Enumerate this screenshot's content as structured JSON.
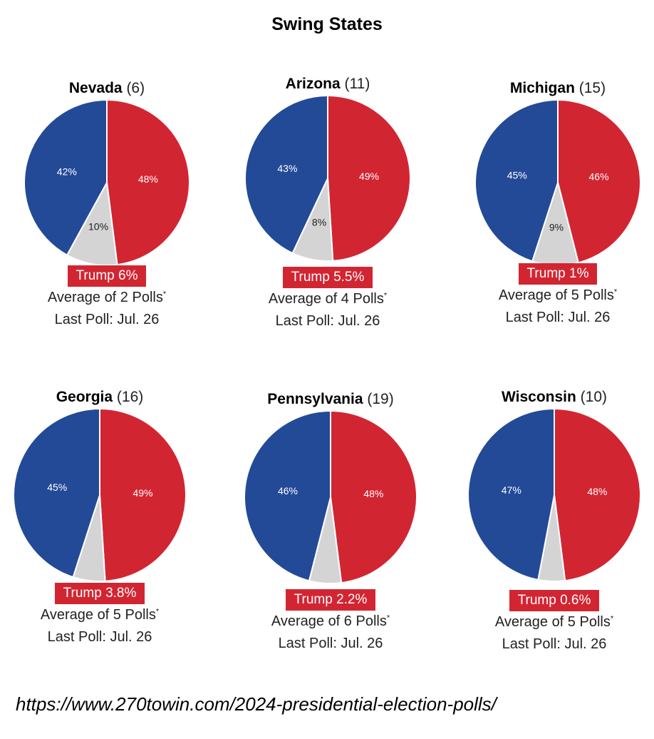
{
  "title": "Swing States",
  "source_url": "https://www.270towin.com/2024-presidential-election-polls/",
  "colors": {
    "dem": "#234a97",
    "rep": "#d22532",
    "other": "#d4d4d4"
  },
  "chart_data": [
    {
      "type": "pie",
      "title": "Nevada",
      "electoral_votes": "(6)",
      "slices": [
        {
          "label": "48%",
          "value": 48,
          "party": "rep"
        },
        {
          "label": "10%",
          "value": 10,
          "party": "other"
        },
        {
          "label": "42%",
          "value": 42,
          "party": "dem"
        }
      ],
      "lead": "Trump 6%",
      "polls_label": "Average of 2 Polls",
      "footnote_mark": "*",
      "last_poll": "Last Poll: Jul. 26"
    },
    {
      "type": "pie",
      "title": "Arizona",
      "electoral_votes": "(11)",
      "slices": [
        {
          "label": "49%",
          "value": 49,
          "party": "rep"
        },
        {
          "label": "8%",
          "value": 8,
          "party": "other"
        },
        {
          "label": "43%",
          "value": 43,
          "party": "dem"
        }
      ],
      "lead": "Trump 5.5%",
      "polls_label": "Average of 4 Polls",
      "footnote_mark": "*",
      "last_poll": "Last Poll: Jul. 26"
    },
    {
      "type": "pie",
      "title": "Michigan",
      "electoral_votes": "(15)",
      "slices": [
        {
          "label": "46%",
          "value": 46,
          "party": "rep"
        },
        {
          "label": "9%",
          "value": 9,
          "party": "other"
        },
        {
          "label": "45%",
          "value": 45,
          "party": "dem"
        }
      ],
      "lead": "Trump 1%",
      "polls_label": "Average of 5 Polls",
      "footnote_mark": "*",
      "last_poll": "Last Poll: Jul. 26"
    },
    {
      "type": "pie",
      "title": "Georgia",
      "electoral_votes": "(16)",
      "slices": [
        {
          "label": "49%",
          "value": 49,
          "party": "rep"
        },
        {
          "label": "",
          "value": 6,
          "party": "other"
        },
        {
          "label": "45%",
          "value": 45,
          "party": "dem"
        }
      ],
      "lead": "Trump 3.8%",
      "polls_label": "Average of 5 Polls",
      "footnote_mark": "*",
      "last_poll": "Last Poll: Jul. 26"
    },
    {
      "type": "pie",
      "title": "Pennsylvania",
      "electoral_votes": "(19)",
      "slices": [
        {
          "label": "48%",
          "value": 48,
          "party": "rep"
        },
        {
          "label": "",
          "value": 6,
          "party": "other"
        },
        {
          "label": "46%",
          "value": 46,
          "party": "dem"
        }
      ],
      "lead": "Trump 2.2%",
      "polls_label": "Average of 6 Polls",
      "footnote_mark": "*",
      "last_poll": "Last Poll: Jul. 26"
    },
    {
      "type": "pie",
      "title": "Wisconsin",
      "electoral_votes": "(10)",
      "slices": [
        {
          "label": "48%",
          "value": 48,
          "party": "rep"
        },
        {
          "label": "",
          "value": 5,
          "party": "other"
        },
        {
          "label": "47%",
          "value": 47,
          "party": "dem"
        }
      ],
      "lead": "Trump 0.6%",
      "polls_label": "Average of 5 Polls",
      "footnote_mark": "*",
      "last_poll": "Last Poll: Jul. 26"
    }
  ]
}
